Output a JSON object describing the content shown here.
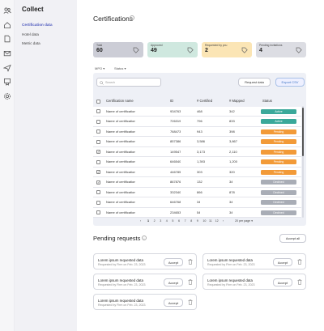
{
  "app": {
    "title": "Collect"
  },
  "rail": {
    "icons": [
      "people-icon",
      "home-icon",
      "document-icon",
      "mail-icon",
      "send-icon",
      "certificate-icon",
      "settings-icon"
    ]
  },
  "sidebar": {
    "items": [
      {
        "label": "Certification data",
        "active": true
      },
      {
        "label": "Hotel data",
        "active": false
      },
      {
        "label": "Metric data",
        "active": false
      }
    ]
  },
  "page": {
    "title": "Certifications"
  },
  "cards": [
    {
      "label": "Total",
      "value": "60",
      "color": "#cccdd6",
      "icon": "tag-icon"
    },
    {
      "label": "Approved",
      "value": "49",
      "color": "#cfe8df",
      "icon": "tag-icon"
    },
    {
      "label": "Requested by you",
      "value": "2",
      "color": "#fbe5b5",
      "icon": "tag-icon"
    },
    {
      "label": "Pending invitations",
      "value": "4",
      "color": "#dcdde3",
      "icon": "tag-icon"
    }
  ],
  "filters": {
    "first": "MPO",
    "second": "Status"
  },
  "table": {
    "search_placeholder": "Search",
    "request_button": "Request data",
    "export_button": "Export CSV",
    "headers": [
      "Certification name",
      "ID",
      "# Certified",
      "# Mapped",
      "Status"
    ],
    "rows": [
      {
        "checked": false,
        "name": "Name of certification",
        "id": "934763",
        "certified": "468",
        "mapped": "342",
        "status": "Active"
      },
      {
        "checked": false,
        "name": "Name of certification",
        "id": "726319",
        "certified": "796",
        "mapped": "833",
        "status": "Active"
      },
      {
        "checked": false,
        "name": "Name of certification",
        "id": "768473",
        "certified": "943",
        "mapped": "398",
        "status": "Pending"
      },
      {
        "checked": false,
        "name": "Name of certification",
        "id": "857386",
        "certified": "3,586",
        "mapped": "3,867",
        "status": "Pending"
      },
      {
        "checked": true,
        "name": "Name of certification",
        "id": "149547",
        "certified": "3,173",
        "mapped": "2,110",
        "status": "Pending"
      },
      {
        "checked": false,
        "name": "Name of certification",
        "id": "646540",
        "certified": "1,393",
        "mapped": "1,200",
        "status": "Pending"
      },
      {
        "checked": true,
        "name": "Name of certification",
        "id": "446785",
        "certified": "303",
        "mapped": "320",
        "status": "Pending"
      },
      {
        "checked": true,
        "name": "Name of certification",
        "id": "867876",
        "certified": "132",
        "mapped": "34",
        "status": "Declined"
      },
      {
        "checked": false,
        "name": "Name of certification",
        "id": "332340",
        "certified": "866",
        "mapped": "878",
        "status": "Declined"
      },
      {
        "checked": false,
        "name": "Name of certification",
        "id": "646768",
        "certified": "34",
        "mapped": "34",
        "status": "Declined"
      },
      {
        "checked": false,
        "name": "Name of certification",
        "id": "234653",
        "certified": "54",
        "mapped": "34",
        "status": "Declined"
      }
    ],
    "status_colors": {
      "Active": "#3aa89a",
      "Pending": "#f29a38",
      "Declined": "#a9adb6"
    }
  },
  "pagination": {
    "prev": "‹",
    "pages": [
      "1",
      "2",
      "3",
      "4",
      "5",
      "6",
      "7",
      "8",
      "9",
      "10",
      "11",
      "12"
    ],
    "next": "›",
    "per_page": "20 per page"
  },
  "pending": {
    "title": "Pending requests",
    "accept_all": "Accept all",
    "requests": [
      {
        "title": "Lorem ipsum requested data",
        "subtitle": "Requested by Firm on Feb. 23, 2023",
        "accept": "Accept"
      },
      {
        "title": "Lorem ipsum requested data",
        "subtitle": "Requested by Firm on Feb. 23, 2023",
        "accept": "Accept"
      },
      {
        "title": "Lorem ipsum requested data",
        "subtitle": "Requested by Firm on Feb. 23, 2023",
        "accept": "Accept"
      },
      {
        "title": "Lorem ipsum requested data",
        "subtitle": "Requested by Firm on Feb. 23, 2023",
        "accept": "Accept"
      },
      {
        "title": "Lorem ipsum requested data",
        "subtitle": "Requested by Firm on Feb. 23, 2023",
        "accept": "Accept"
      }
    ]
  }
}
